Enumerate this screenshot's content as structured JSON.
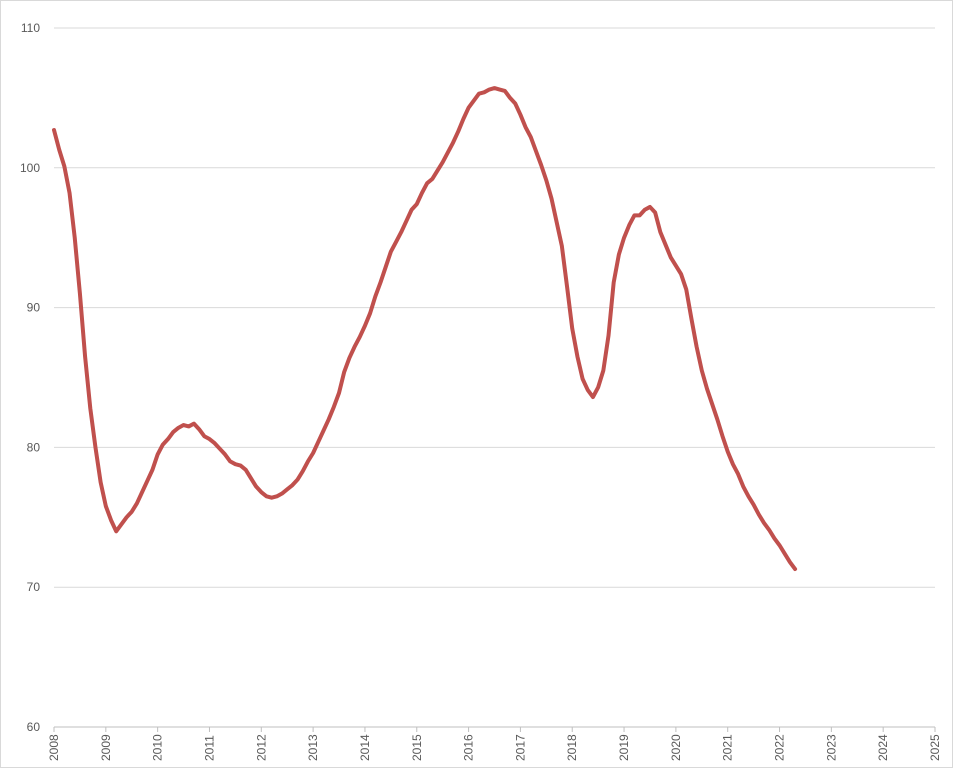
{
  "colors": {
    "series": "#c0504d",
    "grid": "#d9d9d9",
    "axis_text": "#595959"
  },
  "chart_data": {
    "type": "line",
    "title": "",
    "xlabel": "",
    "ylabel": "",
    "xlim": [
      2008,
      2025
    ],
    "ylim": [
      60,
      110
    ],
    "grid": "horizontal",
    "legend": "none",
    "x_ticks": [
      "2008",
      "2009",
      "2010",
      "2011",
      "2012",
      "2013",
      "2014",
      "2015",
      "2016",
      "2017",
      "2018",
      "2019",
      "2020",
      "2021",
      "2022",
      "2023",
      "2024",
      "2025"
    ],
    "y_ticks": [
      "60",
      "70",
      "80",
      "90",
      "100",
      "110"
    ],
    "series": [
      {
        "points": [
          [
            2008.0,
            102.7
          ],
          [
            2008.1,
            101.3
          ],
          [
            2008.2,
            100.1
          ],
          [
            2008.3,
            98.2
          ],
          [
            2008.4,
            95.0
          ],
          [
            2008.5,
            91.0
          ],
          [
            2008.6,
            86.5
          ],
          [
            2008.7,
            82.8
          ],
          [
            2008.8,
            80.0
          ],
          [
            2008.9,
            77.5
          ],
          [
            2009.0,
            75.8
          ],
          [
            2009.1,
            74.8
          ],
          [
            2009.2,
            74.0
          ],
          [
            2009.3,
            74.5
          ],
          [
            2009.4,
            75.0
          ],
          [
            2009.5,
            75.4
          ],
          [
            2009.6,
            76.0
          ],
          [
            2009.7,
            76.8
          ],
          [
            2009.8,
            77.6
          ],
          [
            2009.9,
            78.4
          ],
          [
            2010.0,
            79.5
          ],
          [
            2010.1,
            80.2
          ],
          [
            2010.2,
            80.6
          ],
          [
            2010.3,
            81.1
          ],
          [
            2010.4,
            81.4
          ],
          [
            2010.5,
            81.6
          ],
          [
            2010.6,
            81.5
          ],
          [
            2010.7,
            81.7
          ],
          [
            2010.8,
            81.3
          ],
          [
            2010.9,
            80.8
          ],
          [
            2011.0,
            80.6
          ],
          [
            2011.1,
            80.3
          ],
          [
            2011.2,
            79.9
          ],
          [
            2011.3,
            79.5
          ],
          [
            2011.4,
            79.0
          ],
          [
            2011.5,
            78.8
          ],
          [
            2011.6,
            78.7
          ],
          [
            2011.7,
            78.4
          ],
          [
            2011.8,
            77.8
          ],
          [
            2011.9,
            77.2
          ],
          [
            2012.0,
            76.8
          ],
          [
            2012.1,
            76.5
          ],
          [
            2012.2,
            76.4
          ],
          [
            2012.3,
            76.5
          ],
          [
            2012.4,
            76.7
          ],
          [
            2012.5,
            77.0
          ],
          [
            2012.6,
            77.3
          ],
          [
            2012.7,
            77.7
          ],
          [
            2012.8,
            78.3
          ],
          [
            2012.9,
            79.0
          ],
          [
            2013.0,
            79.6
          ],
          [
            2013.1,
            80.4
          ],
          [
            2013.2,
            81.2
          ],
          [
            2013.3,
            82.0
          ],
          [
            2013.4,
            82.9
          ],
          [
            2013.5,
            83.9
          ],
          [
            2013.6,
            85.4
          ],
          [
            2013.7,
            86.4
          ],
          [
            2013.8,
            87.2
          ],
          [
            2013.9,
            87.9
          ],
          [
            2014.0,
            88.7
          ],
          [
            2014.1,
            89.6
          ],
          [
            2014.2,
            90.8
          ],
          [
            2014.3,
            91.8
          ],
          [
            2014.4,
            92.9
          ],
          [
            2014.5,
            94.0
          ],
          [
            2014.6,
            94.7
          ],
          [
            2014.7,
            95.4
          ],
          [
            2014.8,
            96.2
          ],
          [
            2014.9,
            97.0
          ],
          [
            2015.0,
            97.4
          ],
          [
            2015.1,
            98.2
          ],
          [
            2015.2,
            98.9
          ],
          [
            2015.3,
            99.2
          ],
          [
            2015.4,
            99.8
          ],
          [
            2015.5,
            100.4
          ],
          [
            2015.6,
            101.1
          ],
          [
            2015.7,
            101.8
          ],
          [
            2015.8,
            102.6
          ],
          [
            2015.9,
            103.5
          ],
          [
            2016.0,
            104.3
          ],
          [
            2016.1,
            104.8
          ],
          [
            2016.2,
            105.3
          ],
          [
            2016.3,
            105.4
          ],
          [
            2016.4,
            105.6
          ],
          [
            2016.5,
            105.7
          ],
          [
            2016.6,
            105.6
          ],
          [
            2016.7,
            105.5
          ],
          [
            2016.8,
            105.0
          ],
          [
            2016.9,
            104.6
          ],
          [
            2017.0,
            103.8
          ],
          [
            2017.1,
            102.9
          ],
          [
            2017.2,
            102.2
          ],
          [
            2017.3,
            101.2
          ],
          [
            2017.4,
            100.2
          ],
          [
            2017.5,
            99.1
          ],
          [
            2017.6,
            97.8
          ],
          [
            2017.7,
            96.1
          ],
          [
            2017.8,
            94.4
          ],
          [
            2017.9,
            91.5
          ],
          [
            2018.0,
            88.5
          ],
          [
            2018.1,
            86.5
          ],
          [
            2018.2,
            84.9
          ],
          [
            2018.3,
            84.1
          ],
          [
            2018.4,
            83.6
          ],
          [
            2018.5,
            84.3
          ],
          [
            2018.6,
            85.5
          ],
          [
            2018.7,
            88.0
          ],
          [
            2018.8,
            91.8
          ],
          [
            2018.9,
            93.8
          ],
          [
            2019.0,
            95.0
          ],
          [
            2019.1,
            95.9
          ],
          [
            2019.2,
            96.6
          ],
          [
            2019.3,
            96.6
          ],
          [
            2019.4,
            97.0
          ],
          [
            2019.5,
            97.2
          ],
          [
            2019.6,
            96.8
          ],
          [
            2019.7,
            95.4
          ],
          [
            2019.8,
            94.5
          ],
          [
            2019.9,
            93.6
          ],
          [
            2020.0,
            93.0
          ],
          [
            2020.1,
            92.4
          ],
          [
            2020.2,
            91.3
          ],
          [
            2020.3,
            89.2
          ],
          [
            2020.4,
            87.2
          ],
          [
            2020.5,
            85.5
          ],
          [
            2020.6,
            84.2
          ],
          [
            2020.7,
            83.1
          ],
          [
            2020.8,
            82.0
          ],
          [
            2020.9,
            80.8
          ],
          [
            2021.0,
            79.7
          ],
          [
            2021.1,
            78.8
          ],
          [
            2021.2,
            78.1
          ],
          [
            2021.3,
            77.2
          ],
          [
            2021.4,
            76.5
          ],
          [
            2021.5,
            75.9
          ],
          [
            2021.6,
            75.2
          ],
          [
            2021.7,
            74.6
          ],
          [
            2021.8,
            74.1
          ],
          [
            2021.9,
            73.5
          ],
          [
            2022.0,
            73.0
          ],
          [
            2022.1,
            72.4
          ],
          [
            2022.2,
            71.8
          ],
          [
            2022.3,
            71.3
          ]
        ]
      }
    ]
  }
}
